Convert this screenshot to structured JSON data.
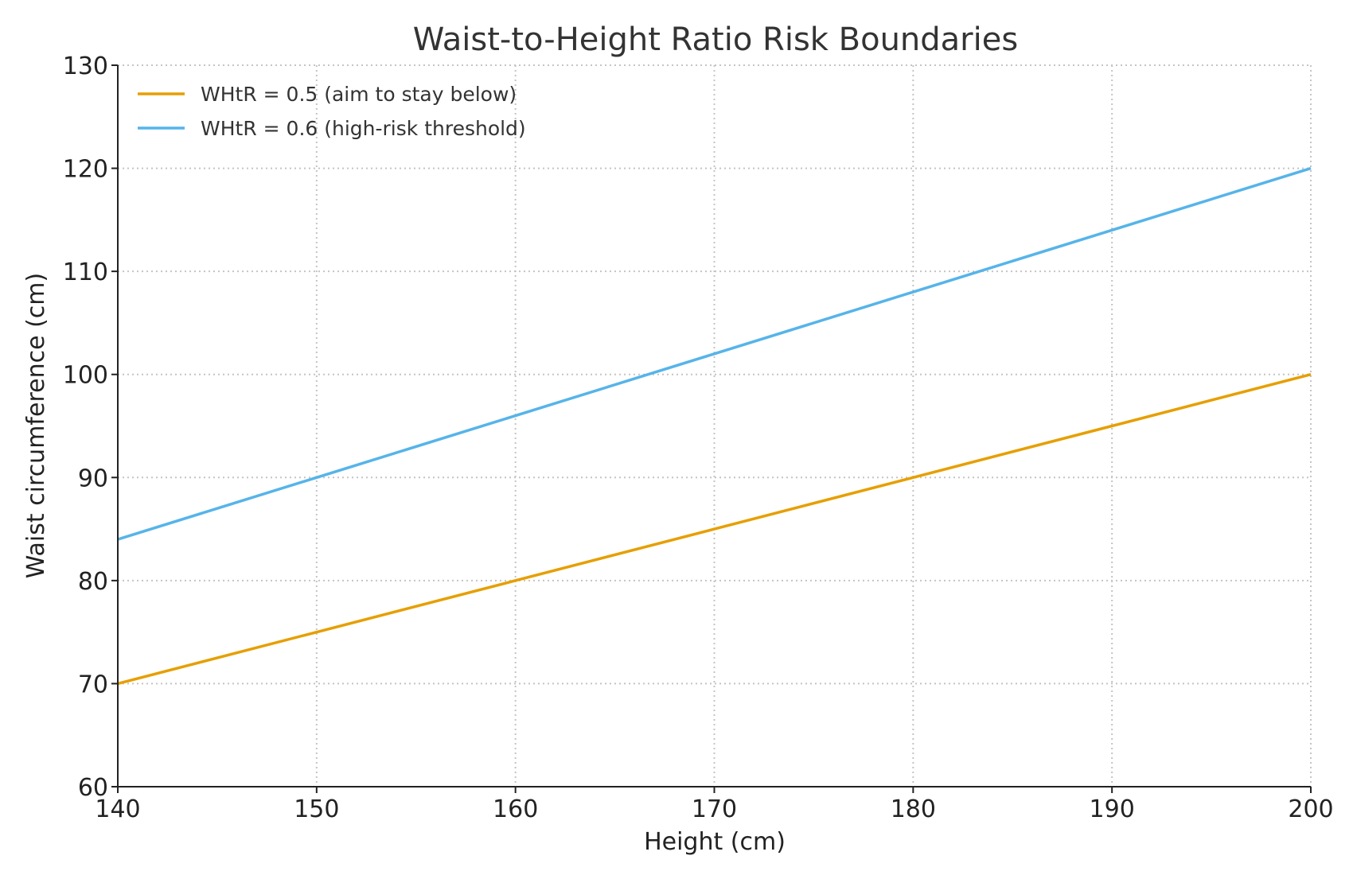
{
  "chart_data": {
    "type": "line",
    "title": "Waist-to-Height Ratio Risk Boundaries",
    "xlabel": "Height (cm)",
    "ylabel": "Waist circumference (cm)",
    "xlim": [
      140,
      200
    ],
    "ylim": [
      60,
      130
    ],
    "x_ticks": [
      "140",
      "150",
      "160",
      "170",
      "180",
      "190",
      "200"
    ],
    "y_ticks": [
      "60",
      "70",
      "80",
      "90",
      "100",
      "110",
      "120",
      "130"
    ],
    "grid": true,
    "legend_position": "top-left",
    "series": [
      {
        "name": "WHtR = 0.5 (aim to stay below)",
        "color": "#E69F00",
        "x": [
          140,
          150,
          160,
          170,
          180,
          190,
          200
        ],
        "y": [
          70,
          75,
          80,
          85,
          90,
          95,
          100
        ]
      },
      {
        "name": "WHtR = 0.6 (high-risk threshold)",
        "color": "#56B4E9",
        "x": [
          140,
          150,
          160,
          170,
          180,
          190,
          200
        ],
        "y": [
          84,
          90,
          96,
          102,
          108,
          114,
          120
        ]
      }
    ]
  }
}
